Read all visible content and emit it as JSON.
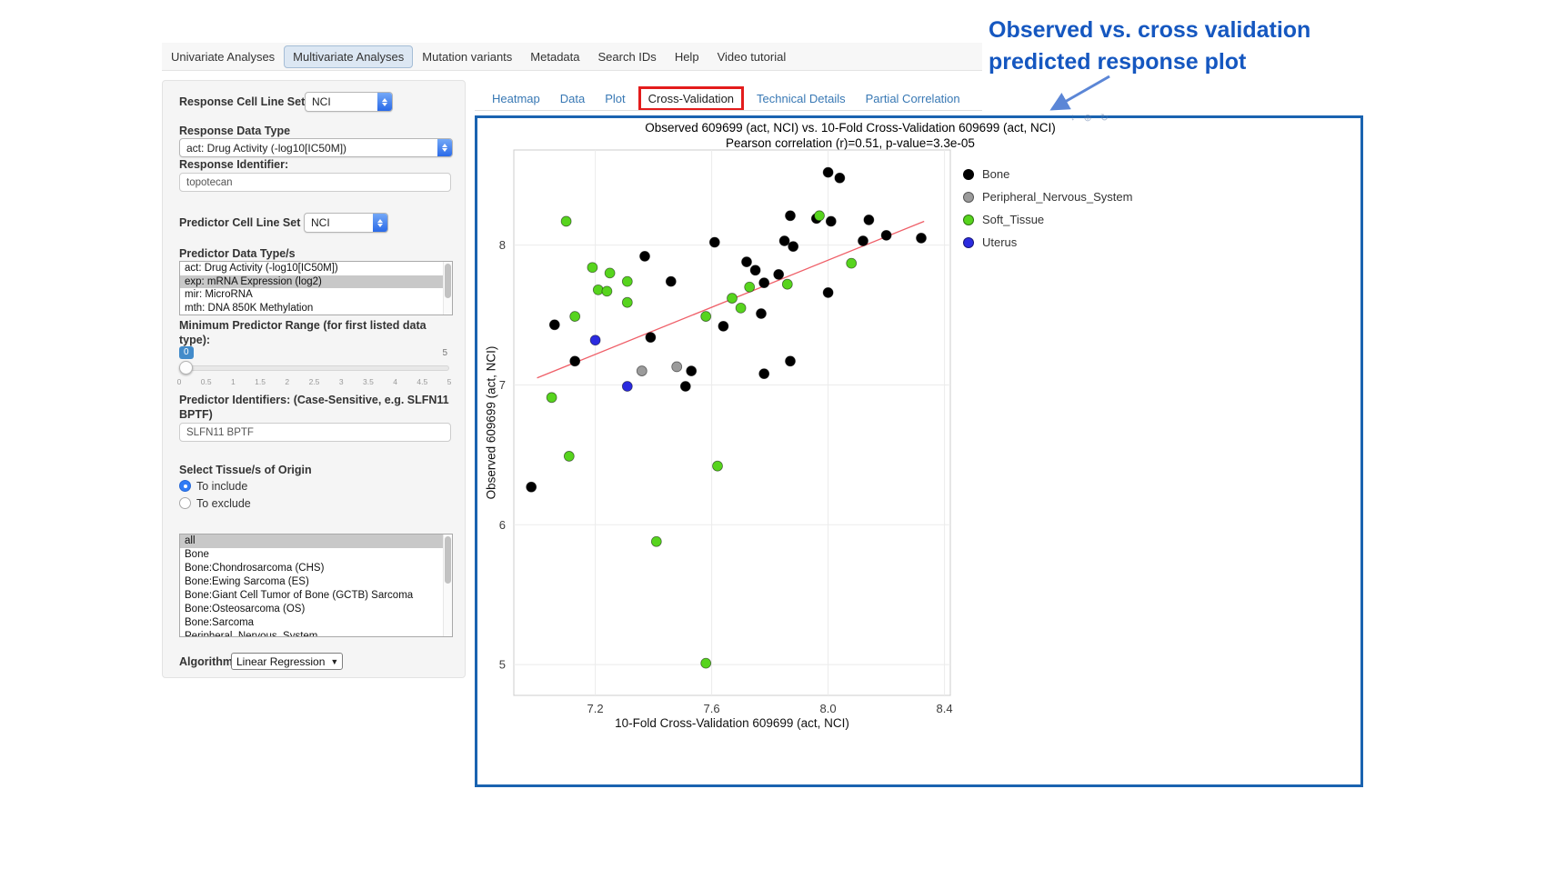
{
  "annotation": {
    "line1": "Observed vs. cross validation",
    "line2": "predicted response plot"
  },
  "nav": {
    "tabs": [
      {
        "label": "Univariate Analyses",
        "active": false
      },
      {
        "label": "Multivariate Analyses",
        "active": true
      },
      {
        "label": "Mutation variants",
        "active": false
      },
      {
        "label": "Metadata",
        "active": false
      },
      {
        "label": "Search IDs",
        "active": false
      },
      {
        "label": "Help",
        "active": false
      },
      {
        "label": "Video tutorial",
        "active": false
      }
    ]
  },
  "sidebar": {
    "response_cell_line_set": {
      "label": "Response Cell Line Set",
      "value": "NCI"
    },
    "response_data_type": {
      "label": "Response Data Type",
      "value": "act: Drug Activity (-log10[IC50M])"
    },
    "response_identifier": {
      "label": "Response Identifier:",
      "value": "topotecan"
    },
    "predictor_cell_line_set": {
      "label": "Predictor Cell Line Set",
      "value": "NCI"
    },
    "predictor_data_types": {
      "label": "Predictor Data Type/s",
      "options": [
        {
          "label": "act: Drug Activity (-log10[IC50M])",
          "selected": false
        },
        {
          "label": "exp: mRNA Expression (log2)",
          "selected": true
        },
        {
          "label": "mir: MicroRNA",
          "selected": false
        },
        {
          "label": "mth: DNA 850K Methylation",
          "selected": false
        }
      ]
    },
    "min_predictor_range": {
      "label": "Minimum Predictor Range (for first listed data type):",
      "value": "0",
      "max": "5",
      "ticks": [
        "0",
        "0.5",
        "1",
        "1.5",
        "2",
        "2.5",
        "3",
        "3.5",
        "4",
        "4.5",
        "5"
      ]
    },
    "predictor_identifiers": {
      "label": "Predictor Identifiers: (Case-Sensitive, e.g. SLFN11 BPTF)",
      "value": "SLFN11 BPTF"
    },
    "tissue_origin": {
      "label": "Select Tissue/s of Origin",
      "radios": [
        {
          "label": "To include",
          "checked": true
        },
        {
          "label": "To exclude",
          "checked": false
        }
      ],
      "options": [
        {
          "label": "all",
          "selected": true
        },
        {
          "label": "Bone",
          "selected": false
        },
        {
          "label": "Bone:Chondrosarcoma (CHS)",
          "selected": false
        },
        {
          "label": "Bone:Ewing Sarcoma (ES)",
          "selected": false
        },
        {
          "label": "Bone:Giant Cell Tumor of Bone (GCTB) Sarcoma",
          "selected": false
        },
        {
          "label": "Bone:Osteosarcoma (OS)",
          "selected": false
        },
        {
          "label": "Bone:Sarcoma",
          "selected": false
        },
        {
          "label": "Peripheral_Nervous_System",
          "selected": false
        }
      ]
    },
    "algorithm": {
      "label": "Algorithm",
      "value": "Linear Regression"
    }
  },
  "content_tabs": [
    {
      "label": "Heatmap",
      "active": false,
      "highlighted": false
    },
    {
      "label": "Data",
      "active": false,
      "highlighted": false
    },
    {
      "label": "Plot",
      "active": false,
      "highlighted": false
    },
    {
      "label": "Cross-Validation",
      "active": true,
      "highlighted": true
    },
    {
      "label": "Technical Details",
      "active": false,
      "highlighted": false
    },
    {
      "label": "Partial Correlation",
      "active": false,
      "highlighted": false
    }
  ],
  "modebar": {
    "icons": [
      {
        "name": "download-icon",
        "glyph": "↓"
      },
      {
        "name": "zoom-icon",
        "glyph": "⊕"
      },
      {
        "name": "reset-icon",
        "glyph": "↻"
      }
    ]
  },
  "chart_data": {
    "type": "scatter",
    "title": "Observed 609699 (act, NCI) vs. 10-Fold Cross-Validation 609699 (act, NCI)",
    "subtitle": "Pearson correlation (r)=0.51, p-value=3.3e-05",
    "xlabel": "10-Fold Cross-Validation 609699 (act, NCI)",
    "ylabel": "Observed 609699 (act, NCI)",
    "xlim": [
      6.92,
      8.42
    ],
    "ylim": [
      4.78,
      8.68
    ],
    "xticks": [
      7.2,
      7.6,
      8.0,
      8.4
    ],
    "yticks": [
      5,
      6,
      7,
      8
    ],
    "grid": true,
    "legend_position": "right",
    "regression_line": {
      "x1": 7.0,
      "y1": 7.05,
      "x2": 8.33,
      "y2": 8.17,
      "color": "#ef5f68"
    },
    "series": [
      {
        "name": "Bone",
        "color": "#000000",
        "points": [
          [
            8.0,
            8.52
          ],
          [
            8.04,
            8.48
          ],
          [
            7.87,
            8.21
          ],
          [
            7.96,
            8.19
          ],
          [
            8.01,
            8.17
          ],
          [
            8.14,
            8.18
          ],
          [
            8.2,
            8.07
          ],
          [
            8.32,
            8.05
          ],
          [
            8.12,
            8.03
          ],
          [
            7.85,
            8.03
          ],
          [
            7.88,
            7.99
          ],
          [
            7.61,
            8.02
          ],
          [
            7.37,
            7.92
          ],
          [
            7.72,
            7.88
          ],
          [
            7.75,
            7.82
          ],
          [
            7.83,
            7.79
          ],
          [
            7.78,
            7.73
          ],
          [
            8.0,
            7.66
          ],
          [
            7.46,
            7.74
          ],
          [
            7.77,
            7.51
          ],
          [
            7.64,
            7.42
          ],
          [
            7.06,
            7.43
          ],
          [
            7.13,
            7.17
          ],
          [
            7.39,
            7.34
          ],
          [
            7.51,
            6.99
          ],
          [
            7.53,
            7.1
          ],
          [
            7.78,
            7.08
          ],
          [
            7.87,
            7.17
          ],
          [
            6.98,
            6.27
          ]
        ]
      },
      {
        "name": "Peripheral_Nervous_System",
        "color": "#9b9b9b",
        "points": [
          [
            7.36,
            7.1
          ],
          [
            7.48,
            7.13
          ]
        ]
      },
      {
        "name": "Soft_Tissue",
        "color": "#57d41e",
        "points": [
          [
            7.1,
            8.17
          ],
          [
            7.19,
            7.84
          ],
          [
            7.21,
            7.68
          ],
          [
            7.24,
            7.67
          ],
          [
            7.25,
            7.8
          ],
          [
            7.31,
            7.74
          ],
          [
            7.31,
            7.59
          ],
          [
            7.13,
            7.49
          ],
          [
            7.58,
            7.49
          ],
          [
            7.67,
            7.62
          ],
          [
            7.7,
            7.55
          ],
          [
            7.73,
            7.7
          ],
          [
            7.86,
            7.72
          ],
          [
            7.97,
            8.21
          ],
          [
            8.08,
            7.87
          ],
          [
            7.05,
            6.91
          ],
          [
            7.11,
            6.49
          ],
          [
            7.41,
            5.88
          ],
          [
            7.62,
            6.42
          ],
          [
            7.58,
            5.01
          ]
        ]
      },
      {
        "name": "Uterus",
        "color": "#2b2bdf",
        "points": [
          [
            7.2,
            7.32
          ],
          [
            7.31,
            6.99
          ]
        ]
      }
    ]
  }
}
